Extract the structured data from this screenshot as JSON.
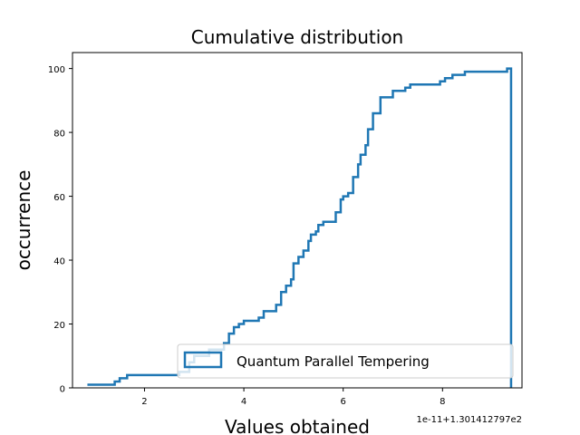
{
  "chart_data": {
    "type": "step",
    "title": "Cumulative distribution",
    "xlabel": "Values obtained",
    "ylabel": "occurrence",
    "x_offset_text": "1e-11+1.301412797e2",
    "xlim": [
      0.55,
      9.6
    ],
    "ylim": [
      0,
      105
    ],
    "xticks": [
      2,
      4,
      6,
      8
    ],
    "yticks": [
      0,
      20,
      40,
      60,
      80,
      100
    ],
    "legend_placement": "lower-right",
    "grid": false,
    "series": [
      {
        "name": "Quantum Parallel Tempering",
        "color": "#1f77b4",
        "steps": [
          [
            0.85,
            1
          ],
          [
            1.4,
            2
          ],
          [
            1.5,
            3
          ],
          [
            1.65,
            4
          ],
          [
            2.7,
            5
          ],
          [
            2.9,
            8
          ],
          [
            3.0,
            10
          ],
          [
            3.3,
            12
          ],
          [
            3.6,
            14
          ],
          [
            3.7,
            17
          ],
          [
            3.8,
            19
          ],
          [
            3.9,
            20
          ],
          [
            4.0,
            21
          ],
          [
            4.3,
            22
          ],
          [
            4.4,
            24
          ],
          [
            4.65,
            26
          ],
          [
            4.75,
            30
          ],
          [
            4.85,
            32
          ],
          [
            4.95,
            34
          ],
          [
            5.0,
            39
          ],
          [
            5.1,
            41
          ],
          [
            5.2,
            43
          ],
          [
            5.3,
            46
          ],
          [
            5.35,
            48
          ],
          [
            5.45,
            49
          ],
          [
            5.5,
            51
          ],
          [
            5.6,
            52
          ],
          [
            5.85,
            55
          ],
          [
            5.95,
            59
          ],
          [
            6.0,
            60
          ],
          [
            6.1,
            61
          ],
          [
            6.2,
            66
          ],
          [
            6.3,
            70
          ],
          [
            6.35,
            73
          ],
          [
            6.45,
            76
          ],
          [
            6.5,
            81
          ],
          [
            6.6,
            86
          ],
          [
            6.75,
            91
          ],
          [
            7.0,
            93
          ],
          [
            7.25,
            94
          ],
          [
            7.35,
            95
          ],
          [
            7.95,
            96
          ],
          [
            8.05,
            97
          ],
          [
            8.2,
            98
          ],
          [
            8.45,
            99
          ],
          [
            9.3,
            100
          ],
          [
            9.38,
            0
          ]
        ]
      }
    ]
  }
}
